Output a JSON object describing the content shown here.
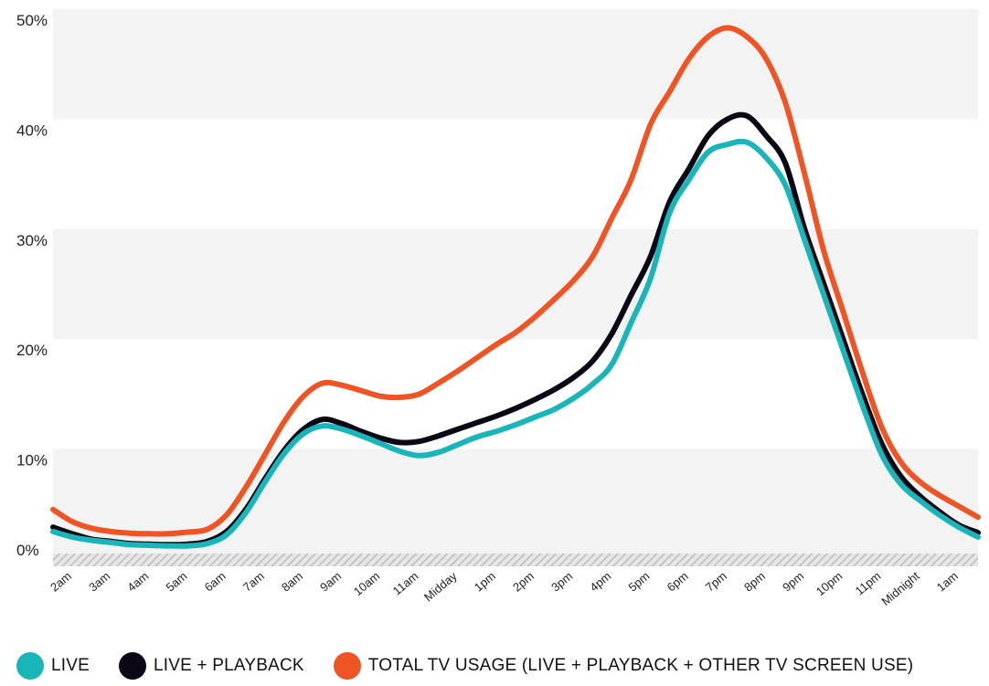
{
  "chart_data": {
    "type": "line",
    "title": "",
    "xlabel": "",
    "ylabel": "",
    "categories": [
      "2am",
      "3am",
      "4am",
      "5am",
      "6am",
      "7am",
      "8am",
      "9am",
      "10am",
      "11am",
      "Midday",
      "1pm",
      "2pm",
      "3pm",
      "4pm",
      "5pm",
      "6pm",
      "7pm",
      "8pm",
      "9pm",
      "10pm",
      "11pm",
      "Midnight",
      "1am"
    ],
    "x_range": [
      0,
      24
    ],
    "ylim": [
      0,
      50
    ],
    "y_ticks": [
      0,
      10,
      20,
      30,
      40,
      50
    ],
    "y_tick_labels": [
      "0%",
      "10%",
      "20%",
      "30%",
      "40%",
      "50%"
    ],
    "grid": "alternating horizontal bands",
    "legend_position": "bottom",
    "series": [
      {
        "name": "LIVE",
        "color": "#1ab5b8",
        "points": [
          [
            0,
            2.5
          ],
          [
            0.5,
            2.0
          ],
          [
            1,
            1.7
          ],
          [
            1.5,
            1.5
          ],
          [
            2,
            1.3
          ],
          [
            2.5,
            1.25
          ],
          [
            3,
            1.2
          ],
          [
            3.5,
            1.2
          ],
          [
            4,
            1.4
          ],
          [
            4.5,
            2.2
          ],
          [
            5,
            4.2
          ],
          [
            5.5,
            7.0
          ],
          [
            6,
            9.6
          ],
          [
            6.5,
            11.4
          ],
          [
            7,
            12.1
          ],
          [
            7.5,
            11.8
          ],
          [
            8,
            11.2
          ],
          [
            8.5,
            10.5
          ],
          [
            9,
            9.8
          ],
          [
            9.5,
            9.4
          ],
          [
            10,
            9.7
          ],
          [
            10.5,
            10.4
          ],
          [
            11,
            11.1
          ],
          [
            11.5,
            11.6
          ],
          [
            12,
            12.2
          ],
          [
            12.5,
            12.9
          ],
          [
            13,
            13.6
          ],
          [
            13.5,
            14.6
          ],
          [
            14,
            15.9
          ],
          [
            14.5,
            17.7
          ],
          [
            15,
            21.5
          ],
          [
            15.5,
            25.5
          ],
          [
            16,
            31.5
          ],
          [
            16.5,
            34.5
          ],
          [
            17,
            37.0
          ],
          [
            17.5,
            37.7
          ],
          [
            18,
            37.9
          ],
          [
            18.5,
            36.5
          ],
          [
            19,
            34.0
          ],
          [
            19.5,
            29.0
          ],
          [
            20,
            24.0
          ],
          [
            20.5,
            19.0
          ],
          [
            21,
            14.0
          ],
          [
            21.5,
            9.5
          ],
          [
            22,
            6.8
          ],
          [
            22.5,
            5.3
          ],
          [
            23,
            4.0
          ],
          [
            23.5,
            2.9
          ],
          [
            24,
            2.0
          ]
        ]
      },
      {
        "name": "LIVE + PLAYBACK",
        "color": "#0c0714",
        "points": [
          [
            0,
            2.9
          ],
          [
            0.5,
            2.3
          ],
          [
            1,
            1.8
          ],
          [
            1.5,
            1.6
          ],
          [
            2,
            1.4
          ],
          [
            2.5,
            1.35
          ],
          [
            3,
            1.3
          ],
          [
            3.5,
            1.35
          ],
          [
            4,
            1.6
          ],
          [
            4.5,
            2.5
          ],
          [
            5,
            4.5
          ],
          [
            5.5,
            7.3
          ],
          [
            6,
            9.9
          ],
          [
            6.5,
            11.8
          ],
          [
            7,
            12.7
          ],
          [
            7.5,
            12.3
          ],
          [
            8,
            11.6
          ],
          [
            8.5,
            11.0
          ],
          [
            9,
            10.6
          ],
          [
            9.5,
            10.7
          ],
          [
            10,
            11.2
          ],
          [
            10.5,
            11.8
          ],
          [
            11,
            12.4
          ],
          [
            11.5,
            13.0
          ],
          [
            12,
            13.7
          ],
          [
            12.5,
            14.5
          ],
          [
            13,
            15.4
          ],
          [
            13.5,
            16.5
          ],
          [
            14,
            18.0
          ],
          [
            14.5,
            20.5
          ],
          [
            15,
            24.0
          ],
          [
            15.5,
            27.5
          ],
          [
            16,
            32.5
          ],
          [
            16.5,
            35.5
          ],
          [
            17,
            38.5
          ],
          [
            17.5,
            40.0
          ],
          [
            18,
            40.3
          ],
          [
            18.5,
            38.5
          ],
          [
            19,
            36.0
          ],
          [
            19.5,
            30.0
          ],
          [
            20,
            25.0
          ],
          [
            20.5,
            20.0
          ],
          [
            21,
            15.0
          ],
          [
            21.5,
            10.5
          ],
          [
            22,
            7.5
          ],
          [
            22.5,
            5.7
          ],
          [
            23,
            4.3
          ],
          [
            23.5,
            3.1
          ],
          [
            24,
            2.4
          ]
        ]
      },
      {
        "name": "TOTAL TV USAGE (LIVE + PLAYBACK + OTHER TV SCREEN USE)",
        "color": "#ee5424",
        "points": [
          [
            0,
            4.5
          ],
          [
            0.5,
            3.4
          ],
          [
            1,
            2.8
          ],
          [
            1.5,
            2.5
          ],
          [
            2,
            2.35
          ],
          [
            2.5,
            2.3
          ],
          [
            3,
            2.3
          ],
          [
            3.5,
            2.45
          ],
          [
            4,
            2.7
          ],
          [
            4.5,
            4.0
          ],
          [
            5,
            6.5
          ],
          [
            5.5,
            9.5
          ],
          [
            6,
            12.5
          ],
          [
            6.5,
            14.8
          ],
          [
            7,
            16.0
          ],
          [
            7.5,
            15.8
          ],
          [
            8,
            15.3
          ],
          [
            8.5,
            14.8
          ],
          [
            9,
            14.7
          ],
          [
            9.5,
            15.0
          ],
          [
            10,
            16.0
          ],
          [
            10.5,
            17.1
          ],
          [
            11,
            18.3
          ],
          [
            11.5,
            19.5
          ],
          [
            12,
            20.6
          ],
          [
            12.5,
            22.0
          ],
          [
            13,
            23.6
          ],
          [
            13.5,
            25.3
          ],
          [
            14,
            27.5
          ],
          [
            14.5,
            31.0
          ],
          [
            15,
            34.5
          ],
          [
            15.5,
            39.5
          ],
          [
            16,
            42.5
          ],
          [
            16.5,
            45.5
          ],
          [
            17,
            47.5
          ],
          [
            17.5,
            48.3
          ],
          [
            18,
            47.5
          ],
          [
            18.5,
            45.5
          ],
          [
            19,
            41.5
          ],
          [
            19.5,
            35.0
          ],
          [
            20,
            28.0
          ],
          [
            20.5,
            22.5
          ],
          [
            21,
            17.0
          ],
          [
            21.5,
            12.0
          ],
          [
            22,
            8.8
          ],
          [
            22.5,
            7.0
          ],
          [
            23,
            5.8
          ],
          [
            23.5,
            4.8
          ],
          [
            24,
            3.8
          ]
        ]
      }
    ]
  },
  "legend": [
    {
      "label": "LIVE",
      "color": "#1ab5b8"
    },
    {
      "label": "LIVE + PLAYBACK",
      "color": "#0c0714"
    },
    {
      "label": "TOTAL TV USAGE (LIVE + PLAYBACK + OTHER TV SCREEN USE)",
      "color": "#ee5424"
    }
  ],
  "colors": {
    "band": "#f3f3f3",
    "baseline_hatch": "#c8c8c8"
  }
}
